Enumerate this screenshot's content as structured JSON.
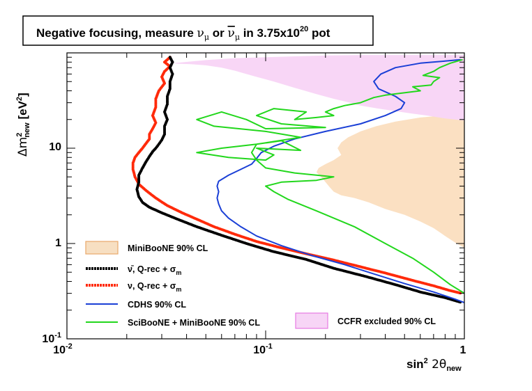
{
  "chart_data": {
    "type": "line",
    "title": {
      "prefix": "Negative focusing, measure ",
      "nu": "ν",
      "sub": "μ",
      "or": " or ",
      "nubar": "ν",
      "in": " in 3.75x10",
      "exp": "20",
      "suffix": " pot"
    },
    "xlabel": {
      "main": "sin",
      "sup": "2",
      "theta": " 2θ",
      "sub": "new"
    },
    "ylabel": {
      "main": "Δm",
      "sup": "2",
      "sub": "new",
      "unit": " [eV",
      "unitsup": "2",
      "close": "]"
    },
    "xscale": "log",
    "yscale": "log",
    "xlim": [
      0.01,
      1
    ],
    "ylim": [
      0.1,
      100
    ],
    "x_ticks": [
      {
        "base": "10",
        "exp": "-2",
        "value": 0.01
      },
      {
        "base": "10",
        "exp": "-1",
        "value": 0.1
      },
      {
        "base": "1",
        "exp": "",
        "value": 1
      }
    ],
    "y_ticks": [
      {
        "base": "10",
        "exp": "-1",
        "value": 0.1
      },
      {
        "base": "1",
        "exp": "",
        "value": 1
      },
      {
        "base": "10",
        "exp": "",
        "value": 10
      }
    ],
    "legend": [
      {
        "label": "MiniBooNE 90% CL",
        "style": "fill",
        "color": "#f7dfc2",
        "edge": "#e9a86a"
      },
      {
        "label": "ν̄, Q-rec + σ",
        "sub": "m",
        "style": "dots",
        "color": "#000000"
      },
      {
        "label": "ν, Q-rec + σ",
        "sub": "m",
        "style": "dots",
        "color": "#ff2a0a"
      },
      {
        "label": "CDHS 90% CL",
        "style": "line",
        "color": "#1a3fd6"
      },
      {
        "label": "SciBooNE + MiniBooNE 90% CL",
        "style": "line",
        "color": "#22d71c"
      },
      {
        "label": "CCFR excluded 90% CL",
        "style": "fill",
        "color": "#f7d5f6",
        "edge": "#e77ae3"
      }
    ],
    "series": [
      {
        "name": "MiniBooNE 90% CL",
        "kind": "region",
        "color": "#fbe0c2",
        "x": [
          1.0,
          0.78,
          0.6,
          0.45,
          0.36,
          0.3,
          0.26,
          0.24,
          0.23,
          0.24,
          0.22,
          0.2,
          0.185,
          0.18,
          0.19,
          0.2,
          0.21,
          0.22,
          0.24,
          0.28,
          0.33,
          0.4,
          0.5,
          0.6,
          0.7,
          0.8,
          0.9,
          1.0
        ],
        "y": [
          20,
          22,
          21,
          19,
          17,
          15,
          13,
          11.5,
          10,
          8.5,
          7.5,
          6.8,
          6.2,
          5.6,
          5.0,
          4.4,
          3.9,
          3.5,
          3.2,
          3.0,
          2.7,
          2.3,
          2.0,
          1.7,
          1.45,
          1.2,
          1.02,
          0.9
        ]
      },
      {
        "name": "CCFR excluded 90% CL",
        "kind": "region",
        "color": "#f8d6f6",
        "x": [
          0.034,
          0.05,
          0.07,
          0.1,
          0.14,
          0.2,
          0.3,
          0.45,
          0.6,
          0.8,
          1.0,
          1.0,
          0.8,
          0.65,
          0.55,
          0.45,
          0.37,
          0.3,
          0.25,
          0.22,
          0.18,
          0.14,
          0.11,
          0.09,
          0.08,
          0.07,
          0.06,
          0.05,
          0.042,
          0.036
        ],
        "y": [
          78,
          84,
          88,
          90,
          92,
          94,
          95,
          95,
          95,
          95,
          95,
          19.5,
          20.5,
          22,
          23,
          24.5,
          26,
          28,
          31,
          33,
          37,
          43,
          50,
          56,
          60,
          65,
          70,
          74,
          76,
          77
        ]
      },
      {
        "name": "ν, Q-rec + σm",
        "kind": "points",
        "color": "#ff2a0a",
        "x": [
          0.033,
          0.031,
          0.033,
          0.031,
          0.03,
          0.031,
          0.029,
          0.028,
          0.028,
          0.027,
          0.028,
          0.027,
          0.026,
          0.026,
          0.025,
          0.024,
          0.023,
          0.022,
          0.0215,
          0.0215,
          0.022,
          0.023,
          0.025,
          0.028,
          0.032,
          0.038,
          0.045,
          0.055,
          0.07,
          0.09,
          0.12,
          0.16,
          0.22,
          0.3,
          0.4,
          0.55,
          0.7,
          0.85,
          0.97
        ],
        "y": [
          90,
          80,
          72,
          64,
          56,
          48,
          40,
          33,
          27,
          22,
          18.5,
          16,
          14,
          12.5,
          11.2,
          10,
          9.0,
          8.0,
          7.0,
          6.0,
          5.0,
          4.2,
          3.6,
          3.0,
          2.5,
          2.1,
          1.8,
          1.5,
          1.25,
          1.05,
          0.9,
          0.78,
          0.67,
          0.57,
          0.49,
          0.41,
          0.36,
          0.32,
          0.3
        ]
      },
      {
        "name": "ν̄, Q-rec + σm",
        "kind": "points",
        "color": "#000000",
        "x": [
          0.033,
          0.034,
          0.033,
          0.034,
          0.033,
          0.033,
          0.032,
          0.032,
          0.031,
          0.032,
          0.031,
          0.031,
          0.03,
          0.029,
          0.028,
          0.027,
          0.026,
          0.025,
          0.024,
          0.023,
          0.023,
          0.0225,
          0.023,
          0.024,
          0.026,
          0.03,
          0.036,
          0.045,
          0.06,
          0.08,
          0.11,
          0.16,
          0.22,
          0.32,
          0.45,
          0.6,
          0.8,
          0.97
        ],
        "y": [
          90,
          80,
          70,
          60,
          50,
          42,
          35,
          29,
          24,
          20,
          17,
          14,
          12.2,
          11,
          10,
          9.2,
          8.2,
          7.2,
          6.2,
          5.2,
          4.4,
          3.7,
          3.1,
          2.7,
          2.4,
          2.1,
          1.8,
          1.5,
          1.22,
          1.0,
          0.82,
          0.68,
          0.55,
          0.45,
          0.37,
          0.31,
          0.27,
          0.24
        ]
      },
      {
        "name": "CDHS 90% CL",
        "kind": "line",
        "color": "#1a3fd6",
        "x": [
          0.96,
          0.8,
          0.6,
          0.45,
          0.38,
          0.35,
          0.37,
          0.45,
          0.5,
          0.48,
          0.4,
          0.3,
          0.2,
          0.14,
          0.11,
          0.095,
          0.09,
          0.085,
          0.075,
          0.065,
          0.058,
          0.057,
          0.058,
          0.057,
          0.058,
          0.06,
          0.065,
          0.075,
          0.09,
          0.12,
          0.17,
          0.25,
          0.35,
          0.5,
          0.7,
          0.9,
          1.0
        ],
        "y": [
          85,
          82,
          78,
          70,
          60,
          50,
          42,
          35,
          30,
          26,
          22,
          18,
          15,
          12.5,
          10.5,
          9.0,
          7.8,
          6.8,
          6.0,
          5.2,
          4.5,
          4.0,
          3.5,
          3.0,
          2.6,
          2.2,
          1.85,
          1.5,
          1.2,
          0.95,
          0.75,
          0.6,
          0.48,
          0.38,
          0.31,
          0.26,
          0.24
        ]
      },
      {
        "name": "SciBooNE + MiniBooNE 90% CL",
        "kind": "line",
        "color": "#22d71c",
        "x": [
          0.98,
          0.85,
          0.75,
          0.7,
          0.62,
          0.75,
          0.7,
          0.68,
          0.55,
          0.6,
          0.4,
          0.35,
          0.3,
          0.25,
          0.22,
          0.2,
          0.22,
          0.18,
          0.14,
          0.16,
          0.11,
          0.09,
          0.12,
          0.2,
          0.1,
          0.08,
          0.06,
          0.045,
          0.055,
          0.1,
          0.15,
          0.09,
          0.06,
          0.045,
          0.065,
          0.1,
          0.11,
          0.09,
          0.15,
          0.12,
          0.09,
          0.085,
          0.09,
          0.1,
          0.14,
          0.22,
          0.18,
          0.12,
          0.1,
          0.11,
          0.13,
          0.18,
          0.28,
          0.4,
          0.55,
          0.7,
          0.85,
          1.0
        ],
        "y": [
          85,
          78,
          70,
          64,
          58,
          55,
          50,
          46,
          44,
          40,
          36,
          34,
          30,
          28,
          26,
          24,
          22,
          21,
          20,
          24,
          26,
          22,
          18,
          16.5,
          16,
          20,
          24,
          20,
          17,
          15,
          13,
          11,
          10,
          9,
          8,
          7.5,
          8.5,
          10,
          9.5,
          12,
          11,
          9,
          7.5,
          6.2,
          5.5,
          5.0,
          4.6,
          4.4,
          4.0,
          3.5,
          2.9,
          2.2,
          1.5,
          1.0,
          0.7,
          0.5,
          0.37,
          0.3
        ]
      }
    ]
  }
}
